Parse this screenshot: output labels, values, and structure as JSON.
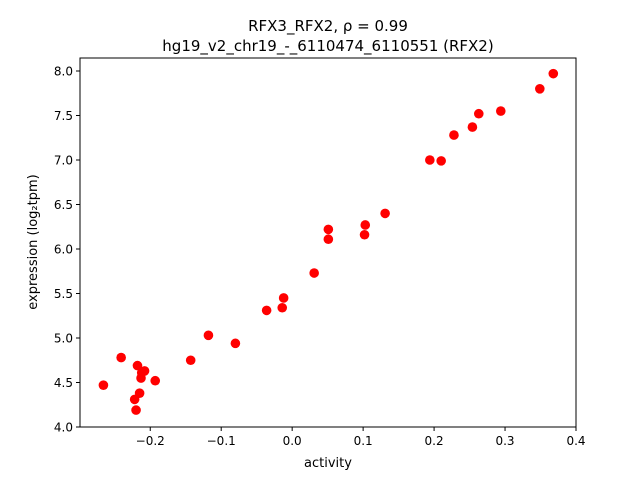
{
  "chart_data": {
    "type": "scatter",
    "title_line1": "RFX3_RFX2, ρ = 0.99",
    "title_line2": "hg19_v2_chr19_-_6110474_6110551 (RFX2)",
    "xlabel": "activity",
    "ylabel": "expression (log₂tpm)",
    "xlim": [
      -0.299,
      0.4
    ],
    "ylim": [
      4.0,
      8.146
    ],
    "xticks": [
      -0.2,
      -0.1,
      0.0,
      0.1,
      0.2,
      0.3,
      0.4
    ],
    "xtick_labels": [
      "−0.2",
      "−0.1",
      "0.0",
      "0.1",
      "0.2",
      "0.3",
      "0.4"
    ],
    "yticks": [
      4.0,
      4.5,
      5.0,
      5.5,
      6.0,
      6.5,
      7.0,
      7.5,
      8.0
    ],
    "ytick_labels": [
      "4.0",
      "4.5",
      "5.0",
      "5.5",
      "6.0",
      "6.5",
      "7.0",
      "7.5",
      "8.0"
    ],
    "grid": false,
    "marker_color": "#ff0000",
    "points": [
      [
        -0.266,
        4.47
      ],
      [
        -0.241,
        4.78
      ],
      [
        -0.218,
        4.69
      ],
      [
        -0.208,
        4.63
      ],
      [
        -0.212,
        4.61
      ],
      [
        -0.213,
        4.55
      ],
      [
        -0.193,
        4.52
      ],
      [
        -0.215,
        4.38
      ],
      [
        -0.222,
        4.31
      ],
      [
        -0.22,
        4.19
      ],
      [
        -0.143,
        4.75
      ],
      [
        -0.118,
        5.03
      ],
      [
        -0.08,
        4.94
      ],
      [
        -0.036,
        5.31
      ],
      [
        -0.012,
        5.45
      ],
      [
        -0.014,
        5.34
      ],
      [
        0.031,
        5.73
      ],
      [
        0.051,
        6.22
      ],
      [
        0.051,
        6.11
      ],
      [
        0.103,
        6.27
      ],
      [
        0.102,
        6.16
      ],
      [
        0.131,
        6.4
      ],
      [
        0.194,
        7.0
      ],
      [
        0.21,
        6.99
      ],
      [
        0.228,
        7.28
      ],
      [
        0.254,
        7.37
      ],
      [
        0.263,
        7.52
      ],
      [
        0.294,
        7.55
      ],
      [
        0.349,
        7.8
      ],
      [
        0.368,
        7.97
      ]
    ]
  }
}
